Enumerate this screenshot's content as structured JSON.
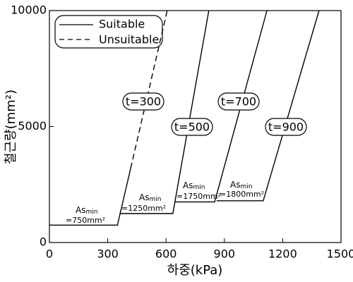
{
  "chart_data": {
    "type": "line",
    "x_label": "하중(kPa)",
    "y_label": "철근량(mm²)",
    "xlim": [
      0,
      1500
    ],
    "xticks": [
      0,
      300,
      600,
      900,
      1200,
      1500
    ],
    "ylim": [
      0,
      10000
    ],
    "yticks": [
      0,
      5000,
      10000
    ],
    "color": "#000000",
    "legend": {
      "suitable": "Suitable",
      "unsuitable": "Unsuitable"
    },
    "series": [
      {
        "name": "t=300",
        "x": [
          0,
          350,
          418
        ],
        "values": [
          750,
          750,
          3200
        ],
        "unsuitable": {
          "x": [
            418,
            606
          ],
          "values": [
            3200,
            10000
          ]
        },
        "as_min": {
          "text": "As",
          "sub": "min",
          "label": "=750mm²"
        }
      },
      {
        "name": "t=500",
        "x": [
          360,
          635,
          820
        ],
        "values": [
          1250,
          1250,
          10000
        ],
        "as_min": {
          "text": "As",
          "sub": "min",
          "label": "=1250mm²"
        }
      },
      {
        "name": "t=700",
        "x": [
          645,
          850,
          1119
        ],
        "values": [
          1750,
          1750,
          10000
        ],
        "as_min": {
          "text": "As",
          "sub": "min",
          "label": "=1750mm²"
        }
      },
      {
        "name": "t=900",
        "x": [
          860,
          1100,
          1387
        ],
        "values": [
          1800,
          1800,
          10000
        ],
        "as_min": {
          "text": "As",
          "sub": "min",
          "label": "=1800mm²"
        }
      }
    ]
  }
}
